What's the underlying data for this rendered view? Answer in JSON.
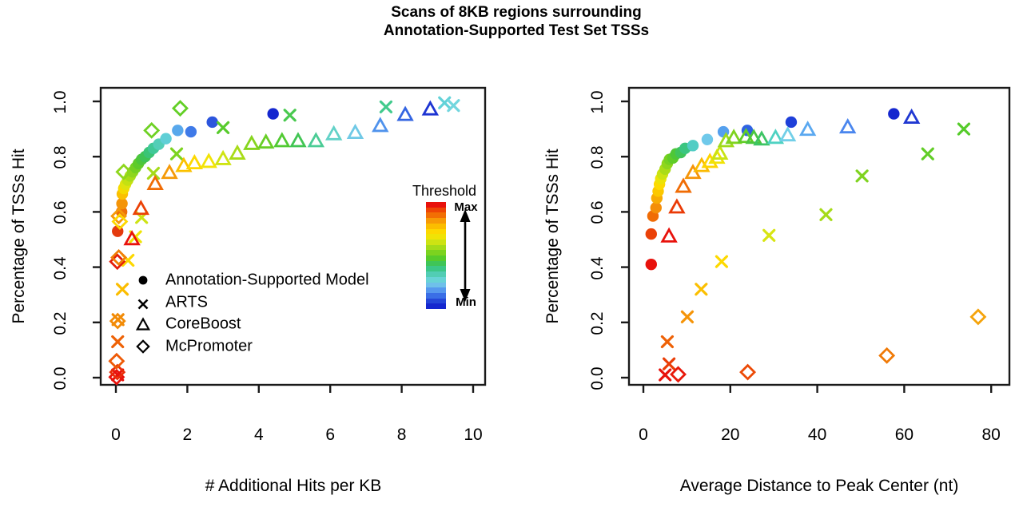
{
  "title": {
    "line1": "Scans of 8KB regions surrounding",
    "line2": "Annotation-Supported Test Set TSSs"
  },
  "colors": {
    "background": "#ffffff",
    "text": "#000000",
    "box": "#1a1a1a"
  },
  "colorbar": {
    "title": "Threshold",
    "max_label": "Max",
    "min_label": "Min",
    "meaning": "rainbow colormap by score threshold, red = Max threshold, blue = Min threshold",
    "colors": [
      "#e8120c",
      "#ee4505",
      "#f26f04",
      "#f79a06",
      "#fbbd00",
      "#fdd800",
      "#f0e306",
      "#cde313",
      "#a4db19",
      "#7cd31f",
      "#57cb2b",
      "#3fc557",
      "#3cc787",
      "#52cdb4",
      "#68d3d6",
      "#6fc0ea",
      "#5698ee",
      "#3a6ee6",
      "#2446d8",
      "#1527cf"
    ]
  },
  "legend": {
    "entries": [
      {
        "label": "Annotation-Supported Model",
        "marker": "circle"
      },
      {
        "label": "ARTS",
        "marker": "x"
      },
      {
        "label": "CoreBoost",
        "marker": "triangle"
      },
      {
        "label": "McPromoter",
        "marker": "diamond"
      }
    ]
  },
  "chart_data": [
    {
      "type": "scatter",
      "xlabel": "# Additional Hits per KB",
      "ylabel": "Percentage of TSSs Hit",
      "xlim": [
        0,
        10
      ],
      "ylim": [
        0,
        1
      ],
      "xticks": [
        0,
        2,
        4,
        6,
        8,
        10
      ],
      "yticks": [
        0,
        0.2,
        0.4,
        0.6,
        0.8,
        1.0
      ],
      "xtick_labels": [
        "0",
        "2",
        "4",
        "6",
        "8",
        "10"
      ],
      "ytick_labels": [
        "0.0",
        "0.2",
        "0.4",
        "0.6",
        "0.8",
        "1.0"
      ],
      "grid": false,
      "series": [
        {
          "name": "Annotation-Supported Model",
          "marker": "circle",
          "points": [
            [
              0.05,
              0.53,
              "#e43a0e"
            ],
            [
              0.16,
              0.6,
              "#ee7008"
            ],
            [
              0.17,
              0.63,
              "#f49408"
            ],
            [
              0.18,
              0.665,
              "#fbc000"
            ],
            [
              0.22,
              0.685,
              "#f6da00"
            ],
            [
              0.27,
              0.7,
              "#dfe30e"
            ],
            [
              0.33,
              0.715,
              "#c4e112"
            ],
            [
              0.4,
              0.73,
              "#a8dc18"
            ],
            [
              0.47,
              0.745,
              "#8ed61d"
            ],
            [
              0.55,
              0.76,
              "#74d022"
            ],
            [
              0.63,
              0.775,
              "#5ecb2a"
            ],
            [
              0.72,
              0.79,
              "#4cc63b"
            ],
            [
              0.82,
              0.8,
              "#3fc355"
            ],
            [
              0.93,
              0.815,
              "#3ac476"
            ],
            [
              1.05,
              0.83,
              "#40c897"
            ],
            [
              1.2,
              0.845,
              "#52ceb7"
            ],
            [
              1.4,
              0.865,
              "#5fcfd6"
            ],
            [
              1.73,
              0.895,
              "#58a8ec"
            ],
            [
              2.1,
              0.89,
              "#3f7ae8"
            ],
            [
              2.7,
              0.925,
              "#2c55dd"
            ],
            [
              4.4,
              0.955,
              "#1527cf"
            ]
          ]
        },
        {
          "name": "ARTS",
          "marker": "x",
          "points": [
            [
              0.05,
              0.01,
              "#e8120c"
            ],
            [
              0.05,
              0.13,
              "#ee6206"
            ],
            [
              0.06,
              0.21,
              "#f28b07"
            ],
            [
              0.18,
              0.32,
              "#fbbd00"
            ],
            [
              0.34,
              0.425,
              "#fdd800"
            ],
            [
              0.55,
              0.51,
              "#efe405"
            ],
            [
              0.72,
              0.58,
              "#cde315"
            ],
            [
              1.05,
              0.74,
              "#a4db19"
            ],
            [
              1.7,
              0.81,
              "#7cd31f"
            ],
            [
              3.0,
              0.905,
              "#57cb2b"
            ],
            [
              4.87,
              0.95,
              "#49c94f"
            ],
            [
              7.56,
              0.98,
              "#41ca8c"
            ],
            [
              9.2,
              0.995,
              "#62d2d8"
            ],
            [
              9.45,
              0.985,
              "#72d6de"
            ]
          ]
        },
        {
          "name": "CoreBoost",
          "marker": "triangle",
          "points": [
            [
              0.45,
              0.5,
              "#e8120c"
            ],
            [
              0.7,
              0.61,
              "#eb4106"
            ],
            [
              1.1,
              0.7,
              "#f06c05"
            ],
            [
              1.5,
              0.74,
              "#f59a08"
            ],
            [
              1.9,
              0.765,
              "#fbc100"
            ],
            [
              2.2,
              0.775,
              "#fdd800"
            ],
            [
              2.6,
              0.78,
              "#f2e307"
            ],
            [
              3.0,
              0.79,
              "#cfe413"
            ],
            [
              3.4,
              0.81,
              "#a8dc18"
            ],
            [
              3.8,
              0.845,
              "#86d51e"
            ],
            [
              4.2,
              0.85,
              "#68ce26"
            ],
            [
              4.65,
              0.855,
              "#52ca33"
            ],
            [
              5.1,
              0.855,
              "#41c553"
            ],
            [
              5.6,
              0.855,
              "#4ccc96"
            ],
            [
              6.1,
              0.88,
              "#63d2c8"
            ],
            [
              6.7,
              0.885,
              "#70c9e6"
            ],
            [
              7.4,
              0.91,
              "#4f92ec"
            ],
            [
              8.1,
              0.95,
              "#3465e2"
            ],
            [
              8.8,
              0.97,
              "#1d34d2"
            ]
          ]
        },
        {
          "name": "McPromoter",
          "marker": "diamond",
          "points": [
            [
              0.02,
              0.002,
              "#e8120c"
            ],
            [
              0.04,
              0.02,
              "#ea2d08"
            ],
            [
              0.02,
              0.06,
              "#ee5a06"
            ],
            [
              0.05,
              0.205,
              "#f28b07"
            ],
            [
              0.04,
              0.42,
              "#e41e0a"
            ],
            [
              0.08,
              0.435,
              "#f07f08"
            ],
            [
              0.08,
              0.585,
              "#f59a08"
            ],
            [
              0.11,
              0.565,
              "#fdd800"
            ],
            [
              0.22,
              0.745,
              "#8ed61d"
            ],
            [
              1.0,
              0.895,
              "#6ed124"
            ],
            [
              1.8,
              0.975,
              "#62cf25"
            ]
          ]
        }
      ]
    },
    {
      "type": "scatter",
      "xlabel": "Average Distance to Peak Center (nt)",
      "ylabel": "Percentage of TSSs Hit",
      "xlim": [
        0,
        80
      ],
      "ylim": [
        0,
        1
      ],
      "xticks": [
        0,
        20,
        40,
        60,
        80
      ],
      "yticks": [
        0,
        0.2,
        0.4,
        0.6,
        0.8,
        1.0
      ],
      "xtick_labels": [
        "0",
        "20",
        "40",
        "60",
        "80"
      ],
      "ytick_labels": [
        "0.0",
        "0.2",
        "0.4",
        "0.6",
        "0.8",
        "1.0"
      ],
      "grid": false,
      "series": [
        {
          "name": "Annotation-Supported Model",
          "marker": "circle",
          "points": [
            [
              1.8,
              0.41,
              "#e8120c"
            ],
            [
              1.8,
              0.52,
              "#ea4108"
            ],
            [
              2.2,
              0.585,
              "#f06c05"
            ],
            [
              2.9,
              0.615,
              "#f48e08"
            ],
            [
              3.1,
              0.65,
              "#f8ab04"
            ],
            [
              3.4,
              0.675,
              "#fcc800"
            ],
            [
              3.7,
              0.7,
              "#fdda00"
            ],
            [
              4.0,
              0.72,
              "#ece307"
            ],
            [
              4.4,
              0.737,
              "#cbe312"
            ],
            [
              5.0,
              0.755,
              "#aadc18"
            ],
            [
              5.5,
              0.775,
              "#8ed61d"
            ],
            [
              6.0,
              0.79,
              "#76d121"
            ],
            [
              6.8,
              0.795,
              "#60cc28"
            ],
            [
              7.5,
              0.81,
              "#4ec737"
            ],
            [
              8.6,
              0.815,
              "#3fc45a"
            ],
            [
              9.6,
              0.83,
              "#3ac580"
            ],
            [
              11.4,
              0.84,
              "#52cdc4"
            ],
            [
              14.7,
              0.862,
              "#6fc9ea"
            ],
            [
              18.4,
              0.89,
              "#55a0ee"
            ],
            [
              23.9,
              0.895,
              "#2f63e2"
            ],
            [
              34.0,
              0.925,
              "#1e3fd9"
            ],
            [
              57.6,
              0.955,
              "#1527cf"
            ]
          ]
        },
        {
          "name": "ARTS",
          "marker": "x",
          "points": [
            [
              5.0,
              0.01,
              "#e8120c"
            ],
            [
              5.9,
              0.05,
              "#ea3d07"
            ],
            [
              5.5,
              0.13,
              "#ee6106"
            ],
            [
              10.1,
              0.22,
              "#f59408"
            ],
            [
              13.3,
              0.32,
              "#fbbf01"
            ],
            [
              18.0,
              0.42,
              "#fdd900"
            ],
            [
              28.9,
              0.515,
              "#d8e513"
            ],
            [
              42.0,
              0.59,
              "#a6db19"
            ],
            [
              50.3,
              0.73,
              "#7fd31f"
            ],
            [
              65.4,
              0.81,
              "#62cd27"
            ],
            [
              73.7,
              0.9,
              "#55cb2a"
            ]
          ]
        },
        {
          "name": "CoreBoost",
          "marker": "triangle",
          "points": [
            [
              5.9,
              0.51,
              "#e8120c"
            ],
            [
              7.7,
              0.615,
              "#ea3a06"
            ],
            [
              9.2,
              0.69,
              "#f06c05"
            ],
            [
              11.4,
              0.74,
              "#f59408"
            ],
            [
              13.4,
              0.765,
              "#faba02"
            ],
            [
              15.3,
              0.78,
              "#fdd400"
            ],
            [
              16.9,
              0.795,
              "#f0e306"
            ],
            [
              17.6,
              0.81,
              "#c9e314"
            ],
            [
              19.0,
              0.855,
              "#9fda1a"
            ],
            [
              20.8,
              0.867,
              "#7fd31f"
            ],
            [
              23.6,
              0.87,
              "#62cd27"
            ],
            [
              25.4,
              0.867,
              "#4bc63e"
            ],
            [
              27.2,
              0.861,
              "#3dc465"
            ],
            [
              30.4,
              0.867,
              "#4fd2c2"
            ],
            [
              33.2,
              0.876,
              "#72cfe8"
            ],
            [
              37.8,
              0.896,
              "#5aa8f0"
            ],
            [
              47.0,
              0.905,
              "#4a86ee"
            ],
            [
              61.7,
              0.94,
              "#2038d2"
            ]
          ]
        },
        {
          "name": "McPromoter",
          "marker": "diamond",
          "points": [
            [
              8.0,
              0.012,
              "#e8190b"
            ],
            [
              24.0,
              0.02,
              "#ec4a06"
            ],
            [
              56.0,
              0.08,
              "#f07a07"
            ],
            [
              77.0,
              0.22,
              "#f5a30a"
            ]
          ]
        }
      ]
    }
  ]
}
